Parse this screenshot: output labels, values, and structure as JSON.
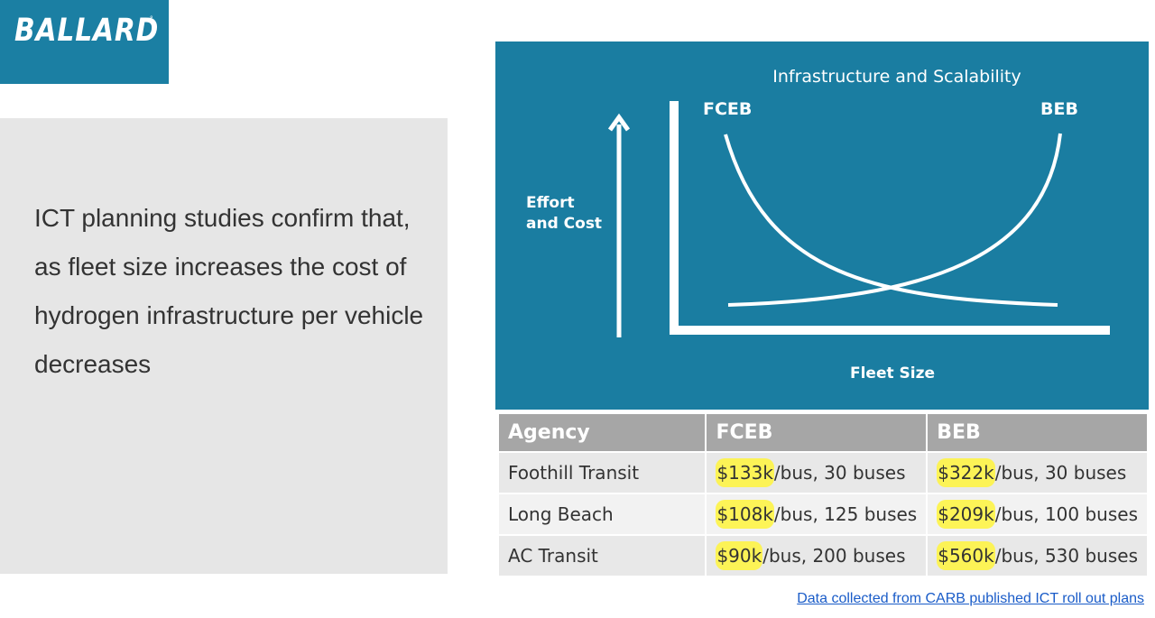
{
  "logo": {
    "text": "BALLARD",
    "mark": "°"
  },
  "statement": "ICT planning studies confirm that, as fleet size increases the cost of hydrogen infrastructure per vehicle decreases",
  "chart_data": {
    "type": "line",
    "title": "Infrastructure and Scalability",
    "xlabel": "Fleet Size",
    "ylabel_line1": "Effort",
    "ylabel_line2": "and Cost",
    "series": [
      {
        "name": "FCEB",
        "trend": "decreasing"
      },
      {
        "name": "BEB",
        "trend": "increasing"
      }
    ],
    "colors": {
      "background": "#1a7da1",
      "lines": "#ffffff"
    }
  },
  "table": {
    "headers": [
      "Agency",
      "FCEB",
      "BEB"
    ],
    "rows": [
      {
        "agency": "Foothill Transit",
        "fceb_cost": "$133k",
        "fceb_rest": "/bus, 30 buses",
        "beb_cost": "$322k",
        "beb_rest": "/bus, 30 buses"
      },
      {
        "agency": "Long Beach",
        "fceb_cost": "$108k",
        "fceb_rest": "/bus, 125 buses",
        "beb_cost": "$209k",
        "beb_rest": "/bus, 100 buses"
      },
      {
        "agency": "AC Transit",
        "fceb_cost": "$90k",
        "fceb_rest": "/bus, 200 buses",
        "beb_cost": "$560k",
        "beb_rest": "/bus, 530 buses"
      }
    ]
  },
  "source_link": "Data collected from CARB published ICT roll out plans"
}
